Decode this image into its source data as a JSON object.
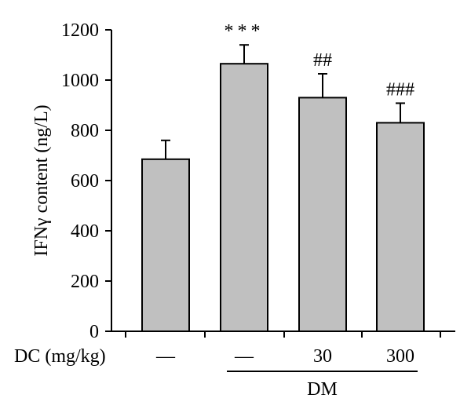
{
  "chart_data": {
    "type": "bar",
    "title": "",
    "ylabel": "IFNγ content (ng/L)",
    "ylim": [
      0,
      1200
    ],
    "yticks": [
      0,
      200,
      400,
      600,
      800,
      1000,
      1200
    ],
    "yticks_text": [
      "0",
      "200",
      "400",
      "600",
      "800",
      "1000",
      "1200"
    ],
    "values": [
      685,
      1065,
      930,
      830
    ],
    "errors": [
      75,
      75,
      95,
      78
    ],
    "annotations": [
      "",
      "***",
      "##",
      "###"
    ],
    "dc_row_label": "DC (mg/kg)",
    "dc_values": [
      "—",
      "—",
      "30",
      "300"
    ],
    "group_label": "DM",
    "group_member_indices": [
      1,
      2,
      3
    ],
    "grid": false,
    "bar_color": "#c0c0c0"
  }
}
